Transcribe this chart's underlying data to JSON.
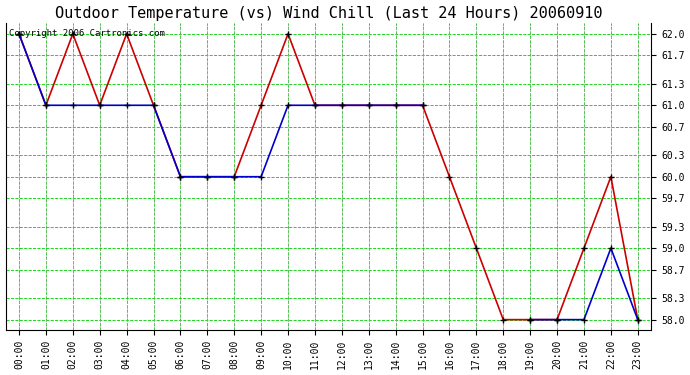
{
  "title": "Outdoor Temperature (vs) Wind Chill (Last 24 Hours) 20060910",
  "copyright": "Copyright 2006 Cartronics.com",
  "background_color": "#ffffff",
  "plot_bg_color": "#ffffff",
  "grid_color": "#00cc00",
  "grid_style": "--",
  "ylim": [
    57.85,
    62.15
  ],
  "yticks": [
    58.0,
    58.3,
    58.7,
    59.0,
    59.3,
    59.7,
    60.0,
    60.3,
    60.7,
    61.0,
    61.3,
    61.7,
    62.0
  ],
  "hours": [
    0,
    1,
    2,
    3,
    4,
    5,
    6,
    7,
    8,
    9,
    10,
    11,
    12,
    13,
    14,
    15,
    16,
    17,
    18,
    19,
    20,
    21,
    22,
    23
  ],
  "temp": [
    62.0,
    61.0,
    62.0,
    61.0,
    62.0,
    61.0,
    60.0,
    60.0,
    60.0,
    61.0,
    62.0,
    61.0,
    61.0,
    61.0,
    61.0,
    61.0,
    60.0,
    59.0,
    58.0,
    58.0,
    58.0,
    59.0,
    60.0,
    58.0
  ],
  "windchill": [
    62.0,
    61.0,
    61.0,
    61.0,
    61.0,
    61.0,
    60.0,
    60.0,
    60.0,
    60.0,
    61.0,
    61.0,
    61.0,
    61.0,
    61.0,
    61.0,
    null,
    null,
    null,
    58.0,
    58.0,
    58.0,
    59.0,
    58.0
  ],
  "temp_color": "#cc0000",
  "windchill_color": "#0000cc",
  "marker": "+",
  "marker_color": "#000000",
  "marker_size": 5,
  "line_width": 1.2,
  "title_fontsize": 11,
  "tick_fontsize": 7,
  "copyright_fontsize": 6.5
}
